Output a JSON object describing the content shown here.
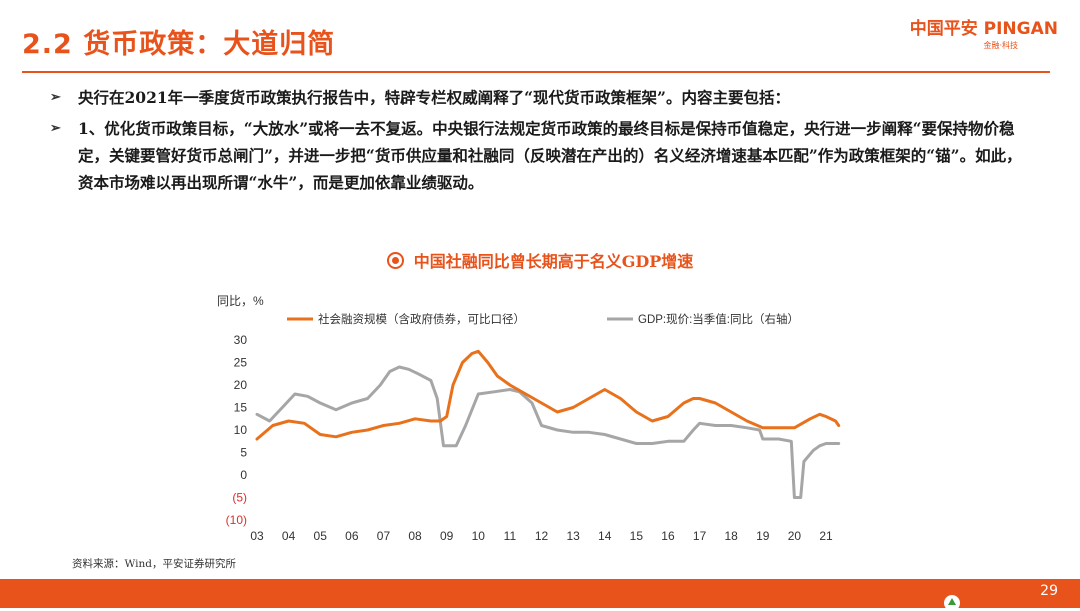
{
  "header": {
    "title": "2.2 货币政策：大道归简",
    "logo_text": "中国平安 PINGAN",
    "logo_sub": "金融·科技"
  },
  "bullets": [
    "央行在2021年一季度货币政策执行报告中，特辟专栏权威阐释了“现代货币政策框架”。内容主要包括：",
    "1、优化货币政策目标，“大放水”或将一去不复返。中央银行法规定货币政策的最终目标是保持币值稳定，央行进一步阐释“要保持物价稳定，关键要管好货币总闸门”，并进一步把“货币供应量和社融同（反映潜在产出的）名义经济增速基本匹配”作为政策框架的“锚”。如此，资本市场难以再出现所谓“水牛”，而是更加依靠业绩驱动。"
  ],
  "chart_title": "中国社融同比曾长期高于名义GDP增速",
  "source": "资料来源：Wind，平安证券研究所",
  "page_number": "29",
  "chart_data": {
    "type": "line",
    "ylabel": "同比，%",
    "ylim": [
      -10,
      30
    ],
    "y_ticks": [
      "30",
      "25",
      "20",
      "15",
      "10",
      "5",
      "0",
      "(5)",
      "(10)"
    ],
    "x_ticks": [
      "03",
      "04",
      "05",
      "06",
      "07",
      "08",
      "09",
      "10",
      "11",
      "12",
      "13",
      "14",
      "15",
      "16",
      "17",
      "18",
      "19",
      "20",
      "21"
    ],
    "xlim": [
      2003.0,
      2021.6
    ],
    "grid": false,
    "legend": "top",
    "colors": {
      "negative_tick": "#d9312c"
    },
    "series": [
      {
        "name": "社会融资规模（含政府债券，可比口径）",
        "color": "#e8711c",
        "points": [
          [
            2003.0,
            8
          ],
          [
            2003.5,
            11
          ],
          [
            2004.0,
            12
          ],
          [
            2004.5,
            11.5
          ],
          [
            2005.0,
            9
          ],
          [
            2005.5,
            8.5
          ],
          [
            2006.0,
            9.5
          ],
          [
            2006.5,
            10
          ],
          [
            2007.0,
            11
          ],
          [
            2007.5,
            11.5
          ],
          [
            2008.0,
            12.5
          ],
          [
            2008.5,
            12
          ],
          [
            2008.8,
            12
          ],
          [
            2009.0,
            13
          ],
          [
            2009.2,
            20
          ],
          [
            2009.5,
            25
          ],
          [
            2009.8,
            27
          ],
          [
            2010.0,
            27.5
          ],
          [
            2010.3,
            25
          ],
          [
            2010.6,
            22
          ],
          [
            2011.0,
            20
          ],
          [
            2011.5,
            18
          ],
          [
            2012.0,
            16
          ],
          [
            2012.5,
            14
          ],
          [
            2013.0,
            15
          ],
          [
            2013.5,
            17
          ],
          [
            2014.0,
            19
          ],
          [
            2014.5,
            17
          ],
          [
            2015.0,
            14
          ],
          [
            2015.5,
            12
          ],
          [
            2016.0,
            13
          ],
          [
            2016.5,
            16
          ],
          [
            2016.8,
            17
          ],
          [
            2017.0,
            17
          ],
          [
            2017.5,
            16
          ],
          [
            2018.0,
            14
          ],
          [
            2018.5,
            12
          ],
          [
            2019.0,
            10.5
          ],
          [
            2019.5,
            10.5
          ],
          [
            2020.0,
            10.5
          ],
          [
            2020.5,
            12.5
          ],
          [
            2020.8,
            13.5
          ],
          [
            2021.0,
            13
          ],
          [
            2021.3,
            12
          ],
          [
            2021.4,
            11
          ]
        ]
      },
      {
        "name": "GDP:现价:当季值:同比（右轴）",
        "color": "#a6a6a6",
        "points": [
          [
            2003.0,
            13.5
          ],
          [
            2003.4,
            12
          ],
          [
            2003.8,
            15
          ],
          [
            2004.2,
            18
          ],
          [
            2004.6,
            17.5
          ],
          [
            2005.0,
            16
          ],
          [
            2005.5,
            14.5
          ],
          [
            2006.0,
            16
          ],
          [
            2006.5,
            17
          ],
          [
            2006.9,
            20
          ],
          [
            2007.2,
            23
          ],
          [
            2007.5,
            24
          ],
          [
            2007.8,
            23.5
          ],
          [
            2008.1,
            22.5
          ],
          [
            2008.5,
            21
          ],
          [
            2008.7,
            17
          ],
          [
            2008.9,
            6.5
          ],
          [
            2009.3,
            6.5
          ],
          [
            2009.6,
            11
          ],
          [
            2010.0,
            18
          ],
          [
            2010.5,
            18.5
          ],
          [
            2011.0,
            19
          ],
          [
            2011.3,
            18.5
          ],
          [
            2011.7,
            16
          ],
          [
            2012.0,
            11
          ],
          [
            2012.5,
            10
          ],
          [
            2013.0,
            9.5
          ],
          [
            2013.5,
            9.5
          ],
          [
            2014.0,
            9
          ],
          [
            2014.5,
            8
          ],
          [
            2015.0,
            7
          ],
          [
            2015.5,
            7
          ],
          [
            2016.0,
            7.5
          ],
          [
            2016.5,
            7.5
          ],
          [
            2016.8,
            10
          ],
          [
            2017.0,
            11.5
          ],
          [
            2017.5,
            11
          ],
          [
            2018.0,
            11
          ],
          [
            2018.5,
            10.5
          ],
          [
            2018.9,
            10
          ],
          [
            2019.0,
            8
          ],
          [
            2019.5,
            8
          ],
          [
            2019.9,
            7.5
          ],
          [
            2020.0,
            -5
          ],
          [
            2020.2,
            -5
          ],
          [
            2020.3,
            3
          ],
          [
            2020.6,
            5.5
          ],
          [
            2020.8,
            6.5
          ],
          [
            2021.0,
            7
          ],
          [
            2021.3,
            7
          ],
          [
            2021.4,
            7
          ]
        ]
      }
    ]
  }
}
